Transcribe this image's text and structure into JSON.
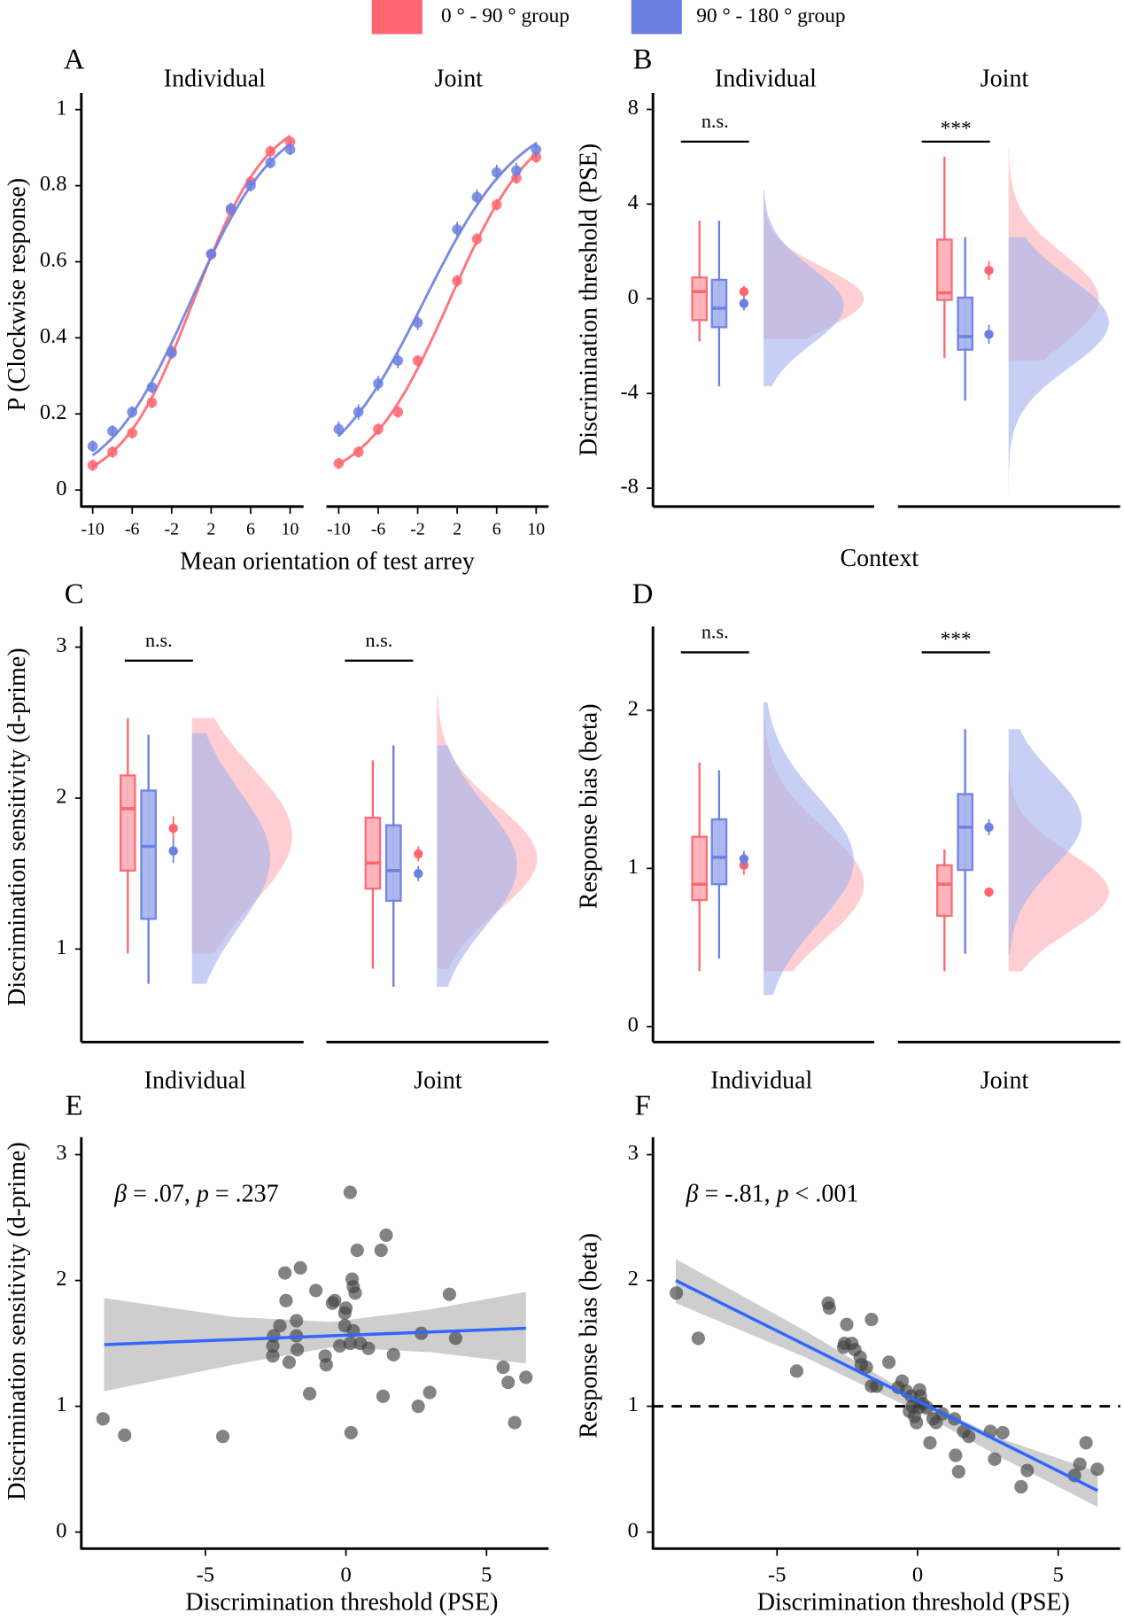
{
  "legend": {
    "items": [
      {
        "label": "0 ° - 90 ° group",
        "color": "#FF6670"
      },
      {
        "label": "90 ° - 180 ° group",
        "color": "#6B80E0"
      }
    ],
    "placement": "top-center"
  },
  "colors": {
    "red": "#FF6670",
    "blue": "#6B80E0",
    "red_fill": "#FFB3BA",
    "blue_fill": "#A9B6EE",
    "points": "#404040",
    "fit": "#3366FF",
    "ci": "#BEBEBE"
  },
  "panel_letters": [
    "A",
    "B",
    "C",
    "D",
    "E",
    "F"
  ],
  "chart_data": [
    {
      "panel": "A",
      "type": "line",
      "ylabel": "P (Clockwise response)",
      "xlabel": "Mean orientation of test arrey",
      "ylim": [
        0,
        1
      ],
      "yticks": [
        "0",
        "0.2",
        "0.4",
        "0.6",
        "0.8",
        "1"
      ],
      "xticks": [
        "-10",
        "-6",
        "-2",
        "2",
        "6",
        "10"
      ],
      "x": [
        -10,
        -8,
        -6,
        -4,
        -2,
        2,
        4,
        6,
        8,
        10
      ],
      "facets": [
        {
          "title": "Individual",
          "series": [
            {
              "group": "red",
              "values": [
                0.065,
                0.1,
                0.15,
                0.23,
                0.365,
                0.62,
                0.735,
                0.81,
                0.89,
                0.915
              ],
              "se": 0.015
            },
            {
              "group": "blue",
              "values": [
                0.115,
                0.155,
                0.205,
                0.27,
                0.36,
                0.62,
                0.74,
                0.8,
                0.86,
                0.895
              ],
              "se": 0.015
            }
          ]
        },
        {
          "title": "Joint",
          "series": [
            {
              "group": "red",
              "values": [
                0.07,
                0.1,
                0.16,
                0.205,
                0.34,
                0.55,
                0.66,
                0.75,
                0.82,
                0.875
              ],
              "se": 0.015
            },
            {
              "group": "blue",
              "values": [
                0.16,
                0.205,
                0.28,
                0.34,
                0.44,
                0.685,
                0.77,
                0.835,
                0.84,
                0.895
              ],
              "se": 0.02
            }
          ]
        }
      ]
    },
    {
      "panel": "B",
      "type": "raincloud",
      "ylabel": "Discrimination threshold (PSE)",
      "xlabel": "Context",
      "ylim": [
        -8.8,
        8.8
      ],
      "yticks": [
        "-8",
        "-4",
        "0",
        "4",
        "8"
      ],
      "ytick_values": [
        -8,
        -4,
        0,
        4,
        8
      ],
      "facets": [
        {
          "title": "Individual",
          "significance": "n.s.",
          "groups": [
            {
              "group": "red",
              "box": {
                "min": -1.8,
                "q1": -0.9,
                "median": 0.3,
                "q3": 0.9,
                "max": 3.3
              },
              "mean": 0.3,
              "se": 0.25,
              "density": {
                "min": -1.7,
                "max": 4.3,
                "mode": 0,
                "sd": 1.3,
                "peak": 1.0
              }
            },
            {
              "group": "blue",
              "box": {
                "min": -3.7,
                "q1": -1.2,
                "median": -0.4,
                "q3": 0.8,
                "max": 3.3
              },
              "mean": -0.2,
              "se": 0.3,
              "density": {
                "min": -3.7,
                "max": 4.6,
                "mode": -0.3,
                "sd": 1.6,
                "peak": 0.8
              }
            }
          ]
        },
        {
          "title": "Joint",
          "significance": "***",
          "groups": [
            {
              "group": "red",
              "box": {
                "min": -2.5,
                "q1": -0.05,
                "median": 0.25,
                "q3": 2.5,
                "max": 6.0
              },
              "mean": 1.2,
              "se": 0.4,
              "density": {
                "min": -2.6,
                "max": 6.4,
                "mode": 0,
                "sd": 1.9,
                "peak": 0.9
              }
            },
            {
              "group": "blue",
              "box": {
                "min": -4.3,
                "q1": -2.15,
                "median": -1.6,
                "q3": 0.05,
                "max": 2.6
              },
              "mean": -1.5,
              "se": 0.4,
              "density": {
                "min": -8.6,
                "max": 2.6,
                "mode": -1.0,
                "sd": 1.9,
                "peak": 1.0
              }
            }
          ]
        }
      ]
    },
    {
      "panel": "C",
      "type": "raincloud",
      "ylabel": "Discrimination sensitivity (d-prime)",
      "yticks": [
        "1",
        "2",
        "3"
      ],
      "ytick_values": [
        1,
        2,
        3
      ],
      "facets": [
        {
          "title": "Individual",
          "significance": "n.s.",
          "groups": [
            {
              "group": "red",
              "box": {
                "min": 0.97,
                "q1": 1.52,
                "median": 1.93,
                "q3": 2.15,
                "max": 2.53
              },
              "mean": 1.8,
              "se": 0.08,
              "density": {
                "min": 0.97,
                "max": 2.53,
                "mode": 1.75,
                "sd": 0.45,
                "peak": 1.0
              }
            },
            {
              "group": "blue",
              "box": {
                "min": 0.77,
                "q1": 1.2,
                "median": 1.68,
                "q3": 2.05,
                "max": 2.42
              },
              "mean": 1.65,
              "se": 0.08,
              "density": {
                "min": 0.77,
                "max": 2.43,
                "mode": 1.6,
                "sd": 0.45,
                "peak": 0.78
              }
            }
          ]
        },
        {
          "title": "Joint",
          "significance": "n.s.",
          "groups": [
            {
              "group": "red",
              "box": {
                "min": 0.87,
                "q1": 1.4,
                "median": 1.57,
                "q3": 1.87,
                "max": 2.25
              },
              "mean": 1.63,
              "se": 0.05,
              "density": {
                "min": 0.87,
                "max": 2.68,
                "mode": 1.6,
                "sd": 0.35,
                "peak": 1.0
              }
            },
            {
              "group": "blue",
              "box": {
                "min": 0.75,
                "q1": 1.32,
                "median": 1.52,
                "q3": 1.82,
                "max": 2.35
              },
              "mean": 1.5,
              "se": 0.05,
              "density": {
                "min": 0.75,
                "max": 2.35,
                "mode": 1.55,
                "sd": 0.4,
                "peak": 0.8
              }
            }
          ]
        }
      ]
    },
    {
      "panel": "D",
      "type": "raincloud",
      "ylabel": "Response bias (beta)",
      "yticks": [
        "0",
        "1",
        "2"
      ],
      "ytick_values": [
        0,
        1,
        2
      ],
      "facets": [
        {
          "title": "Individual",
          "significance": "n.s.",
          "groups": [
            {
              "group": "red",
              "box": {
                "min": 0.35,
                "q1": 0.8,
                "median": 0.9,
                "q3": 1.2,
                "max": 1.67
              },
              "mean": 1.02,
              "se": 0.06,
              "density": {
                "min": 0.35,
                "max": 2.05,
                "mode": 0.9,
                "sd": 0.35,
                "peak": 1.0
              }
            },
            {
              "group": "blue",
              "box": {
                "min": 0.43,
                "q1": 0.9,
                "median": 1.07,
                "q3": 1.31,
                "max": 1.62
              },
              "mean": 1.06,
              "se": 0.05,
              "density": {
                "min": 0.2,
                "max": 2.05,
                "mode": 1.05,
                "sd": 0.4,
                "peak": 0.9
              }
            }
          ]
        },
        {
          "title": "Joint",
          "significance": "***",
          "groups": [
            {
              "group": "red",
              "box": {
                "min": 0.35,
                "q1": 0.7,
                "median": 0.9,
                "q3": 1.02,
                "max": 1.12
              },
              "mean": 0.85,
              "se": 0.03,
              "density": {
                "min": 0.35,
                "max": 1.62,
                "mode": 0.85,
                "sd": 0.25,
                "peak": 1.0
              }
            },
            {
              "group": "blue",
              "box": {
                "min": 0.46,
                "q1": 0.99,
                "median": 1.26,
                "q3": 1.47,
                "max": 1.88
              },
              "mean": 1.26,
              "se": 0.05,
              "density": {
                "min": 0.46,
                "max": 1.88,
                "mode": 1.3,
                "sd": 0.3,
                "peak": 0.73
              }
            }
          ]
        }
      ]
    },
    {
      "panel": "E",
      "type": "scatter",
      "ylabel": "Discrimination sensitivity (d-prime)",
      "xlabel": "Discrimination threshold (PSE)",
      "annotation": {
        "beta": "β",
        "text": " = .07, ",
        "p": "p",
        "rest": " = .237"
      },
      "xlim": [
        -9.2,
        7.1
      ],
      "ylim": [
        -0.13,
        3.2
      ],
      "xticks": [
        "-5",
        "0",
        "5"
      ],
      "xtick_values": [
        -5,
        0,
        5
      ],
      "yticks": [
        "0",
        "1",
        "2",
        "3"
      ],
      "ytick_values": [
        0,
        1,
        2,
        3
      ],
      "points": [
        [
          -8.64,
          0.9
        ],
        [
          -7.87,
          0.77
        ],
        [
          -4.38,
          0.76
        ],
        [
          0.15,
          2.7
        ],
        [
          1.43,
          2.36
        ],
        [
          1.25,
          2.24
        ],
        [
          0.4,
          2.24
        ],
        [
          -2.17,
          2.06
        ],
        [
          -1.62,
          2.1
        ],
        [
          0.22,
          2.01
        ],
        [
          0.26,
          1.95
        ],
        [
          0.33,
          1.9
        ],
        [
          -1.07,
          1.92
        ],
        [
          3.68,
          1.89
        ],
        [
          -0.4,
          1.84
        ],
        [
          -2.13,
          1.84
        ],
        [
          -0.48,
          1.82
        ],
        [
          0,
          1.78
        ],
        [
          -2.35,
          1.64
        ],
        [
          -1.76,
          1.68
        ],
        [
          -0.04,
          1.74
        ],
        [
          -0.04,
          1.64
        ],
        [
          -2.57,
          1.56
        ],
        [
          -1.76,
          1.56
        ],
        [
          0.26,
          1.6
        ],
        [
          2.68,
          1.58
        ],
        [
          3.9,
          1.54
        ],
        [
          -2.6,
          1.48
        ],
        [
          -1.73,
          1.45
        ],
        [
          -0.22,
          1.48
        ],
        [
          0.15,
          1.5
        ],
        [
          0.51,
          1.5
        ],
        [
          0.8,
          1.46
        ],
        [
          -2.6,
          1.4
        ],
        [
          -2.02,
          1.35
        ],
        [
          -0.74,
          1.4
        ],
        [
          -0.7,
          1.33
        ],
        [
          1.69,
          1.41
        ],
        [
          -1.29,
          1.1
        ],
        [
          1.32,
          1.08
        ],
        [
          2.98,
          1.11
        ],
        [
          2.57,
          1.0
        ],
        [
          5.59,
          1.31
        ],
        [
          5.77,
          1.19
        ],
        [
          6.4,
          1.23
        ],
        [
          6.0,
          0.87
        ],
        [
          0.18,
          0.79
        ]
      ],
      "fit": {
        "x": [
          -8.6,
          6.4
        ],
        "y": [
          1.49,
          1.62
        ]
      },
      "ci": {
        "x": [
          -8.6,
          -4,
          -0.5,
          3,
          6.4
        ],
        "lower": [
          1.12,
          1.33,
          1.47,
          1.43,
          1.34
        ],
        "upper": [
          1.86,
          1.71,
          1.67,
          1.77,
          1.91
        ]
      }
    },
    {
      "panel": "F",
      "type": "scatter",
      "ylabel": "Response bias (beta)",
      "xlabel": "Discrimination threshold (PSE)",
      "annotation": {
        "beta": "β",
        "text": " = -.81, ",
        "p": "p",
        "rest": " < .001"
      },
      "reference_line": 1,
      "xlim": [
        -9.2,
        7.1
      ],
      "ylim": [
        -0.13,
        3.2
      ],
      "xticks": [
        "-5",
        "0",
        "5"
      ],
      "xtick_values": [
        -5,
        0,
        5
      ],
      "yticks": [
        "0",
        "1",
        "2",
        "3"
      ],
      "ytick_values": [
        0,
        1,
        2,
        3
      ],
      "points": [
        [
          -8.58,
          1.9
        ],
        [
          -7.8,
          1.54
        ],
        [
          -4.3,
          1.28
        ],
        [
          -3.18,
          1.82
        ],
        [
          -3.14,
          1.78
        ],
        [
          -1.64,
          1.69
        ],
        [
          -2.52,
          1.65
        ],
        [
          -2.6,
          1.5
        ],
        [
          -2.34,
          1.5
        ],
        [
          -2.63,
          1.47
        ],
        [
          -2.23,
          1.45
        ],
        [
          -2.04,
          1.39
        ],
        [
          -2.0,
          1.33
        ],
        [
          -1.64,
          1.16
        ],
        [
          -1.82,
          1.31
        ],
        [
          -1.02,
          1.35
        ],
        [
          -1.46,
          1.16
        ],
        [
          -0.55,
          1.2
        ],
        [
          -0.69,
          1.15
        ],
        [
          -0.4,
          1.12
        ],
        [
          -0.22,
          1.08
        ],
        [
          0.07,
          1.13
        ],
        [
          0.1,
          1.08
        ],
        [
          -0.18,
          1.0
        ],
        [
          0.04,
          0.99
        ],
        [
          0.18,
          1.02
        ],
        [
          0.33,
          0.99
        ],
        [
          -0.04,
          0.87
        ],
        [
          0.55,
          0.9
        ],
        [
          0.66,
          0.87
        ],
        [
          0.88,
          0.94
        ],
        [
          1.31,
          0.9
        ],
        [
          0.44,
          0.71
        ],
        [
          1.64,
          0.8
        ],
        [
          1.82,
          0.76
        ],
        [
          2.59,
          0.8
        ],
        [
          3.03,
          0.79
        ],
        [
          1.35,
          0.61
        ],
        [
          1.46,
          0.48
        ],
        [
          2.74,
          0.58
        ],
        [
          3.9,
          0.49
        ],
        [
          3.68,
          0.36
        ],
        [
          5.99,
          0.71
        ],
        [
          5.77,
          0.54
        ],
        [
          6.39,
          0.5
        ],
        [
          5.58,
          0.45
        ],
        [
          -0.29,
          0.96
        ],
        [
          -0.11,
          0.92
        ]
      ],
      "fit": {
        "x": [
          -8.6,
          6.4
        ],
        "y": [
          2.0,
          0.33
        ]
      },
      "ci": {
        "x": [
          -8.6,
          -4,
          0,
          3,
          6.4
        ],
        "lower": [
          1.82,
          1.39,
          0.96,
          0.59,
          0.2
        ],
        "upper": [
          2.17,
          1.6,
          1.06,
          0.74,
          0.48
        ]
      }
    }
  ]
}
